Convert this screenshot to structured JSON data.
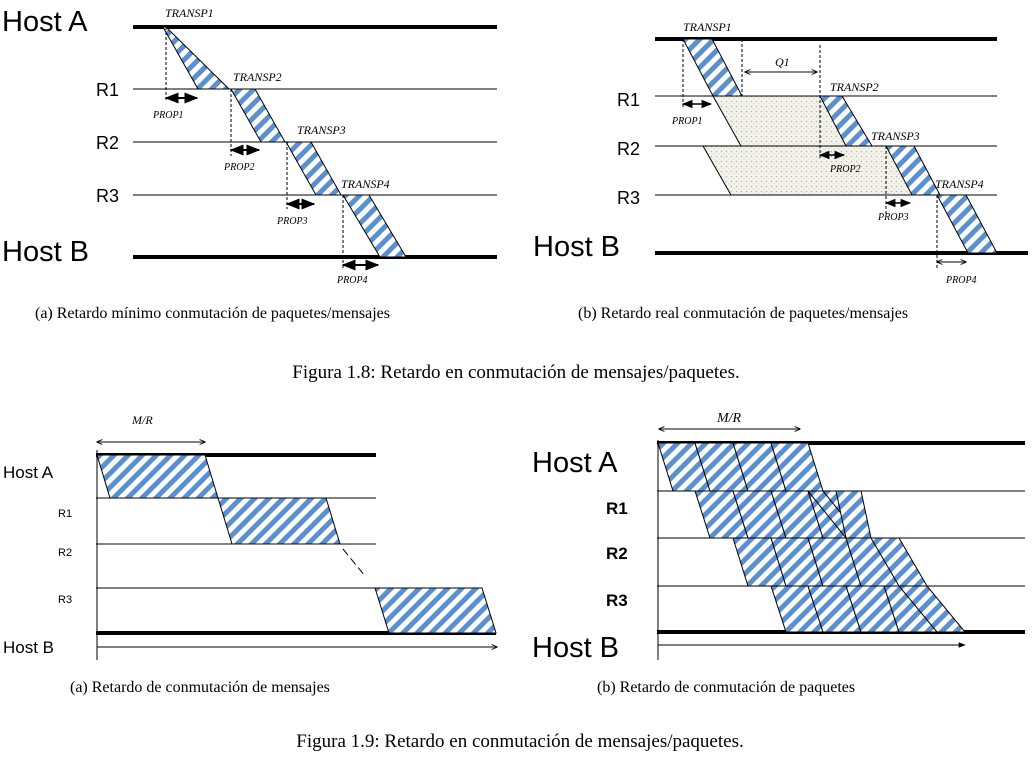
{
  "labels": {
    "host_a": "Host A",
    "host_b": "Host B",
    "r1": "R1",
    "r2": "R2",
    "r3": "R3",
    "transp1": "TRANSP1",
    "transp2": "TRANSP2",
    "transp3": "TRANSP3",
    "transp4": "TRANSP4",
    "prop1": "PROP1",
    "prop2": "PROP2",
    "prop3": "PROP3",
    "prop4": "PROP4",
    "q1": "Q1",
    "mr": "M/R"
  },
  "captions": {
    "fig18a": "(a)  Retardo mínimo conmutación de paquetes/mensajes",
    "fig18b": "(b)  Retardo real conmutación de paquetes/mensajes",
    "fig18": "Figura 1.8: Retardo en conmutación de mensajes/paquetes.",
    "fig19a": "(a)  Retardo de conmutación de mensajes",
    "fig19b": "(b)  Retardo de conmutación de paquetes",
    "fig19": "Figura 1.9: Retardo en conmutación de mensajes/paquetes."
  },
  "colors": {
    "stripe": "#5a8fd0",
    "dots": "#c8c8b8",
    "line": "#000000"
  }
}
